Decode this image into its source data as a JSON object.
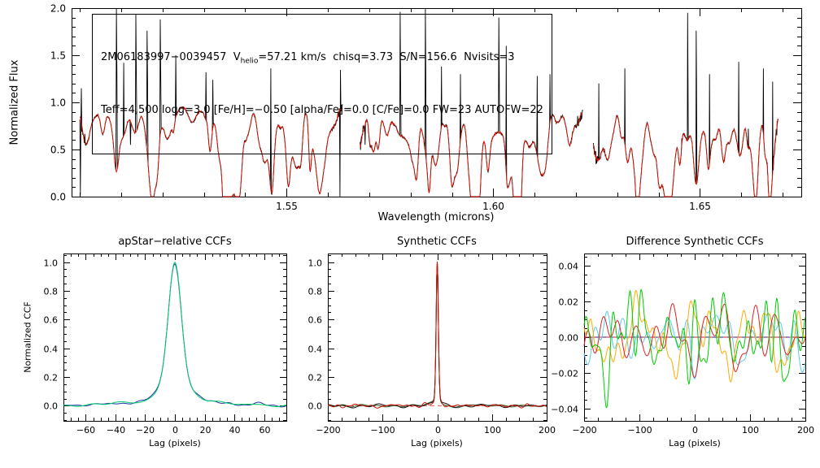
{
  "page": {
    "background": "#ffffff"
  },
  "chart_data": [
    {
      "id": "spectrum",
      "type": "line",
      "title": "",
      "xlabel": "Wavelength (microns)",
      "ylabel": "Normalized Flux",
      "xlim": [
        1.498,
        1.6745
      ],
      "ylim": [
        0.0,
        2.0
      ],
      "xticks": [
        1.55,
        1.6,
        1.65
      ],
      "yticks": [
        0.0,
        0.5,
        1.0,
        1.5,
        2.0
      ],
      "xminor": 0.01,
      "yminor": 0.1,
      "xfmt": 2,
      "yfmt": 1,
      "annotation": {
        "line1_pre": "2M06183997−0039457  V",
        "line1_sub": "helio",
        "line1_post": "=57.21 km/s  chisq=3.73  S/N=156.6  Nvisits=3",
        "line2": "Teff=4,500 logg=3.0 [Fe/H]=−0.50 [alpha/Fe]=0.0 [C/Fe]=0.0 FW=23 AUTOFW=22"
      },
      "segments": [
        [
          1.5,
          1.5635
        ],
        [
          1.5678,
          1.6216
        ],
        [
          1.6242,
          1.6689
        ]
      ],
      "baseline": 0.965,
      "noise_sigma": 0.012,
      "colors": {
        "data": "#000000",
        "model": "#dd1100"
      },
      "emission_spikes": [
        {
          "w": 1.5003,
          "h": 1.15
        },
        {
          "w": 1.5088,
          "h": 2.05
        },
        {
          "w": 1.5106,
          "h": 1.42
        },
        {
          "w": 1.5135,
          "h": 1.93
        },
        {
          "w": 1.5163,
          "h": 1.76
        },
        {
          "w": 1.5194,
          "h": 1.88
        },
        {
          "w": 1.5232,
          "h": 1.5
        },
        {
          "w": 1.5305,
          "h": 1.32
        },
        {
          "w": 1.5322,
          "h": 1.24
        },
        {
          "w": 1.5462,
          "h": 1.36
        },
        {
          "w": 1.5629,
          "h": 2.05
        },
        {
          "w": 1.5775,
          "h": 1.96
        },
        {
          "w": 1.5836,
          "h": 2.05
        },
        {
          "w": 1.5875,
          "h": 1.38
        },
        {
          "w": 1.5921,
          "h": 1.3
        },
        {
          "w": 1.6013,
          "h": 1.9
        },
        {
          "w": 1.6031,
          "h": 1.6
        },
        {
          "w": 1.6106,
          "h": 1.28
        },
        {
          "w": 1.6137,
          "h": 1.3
        },
        {
          "w": 1.6255,
          "h": 1.2
        },
        {
          "w": 1.6318,
          "h": 1.36
        },
        {
          "w": 1.647,
          "h": 1.95
        },
        {
          "w": 1.6491,
          "h": 1.76
        },
        {
          "w": 1.6523,
          "h": 1.3
        },
        {
          "w": 1.6594,
          "h": 1.43
        },
        {
          "w": 1.6653,
          "h": 1.36
        },
        {
          "w": 1.6676,
          "h": 1.22
        }
      ],
      "deep_dips": [
        {
          "w": 1.5001,
          "d": 0.02
        },
        {
          "w": 1.5122,
          "d": 0.55
        },
        {
          "w": 1.5629,
          "d": 0.0
        },
        {
          "w": 1.569,
          "d": 0.55
        },
        {
          "w": 1.6456,
          "d": 0.62
        },
        {
          "w": 1.6617,
          "d": 0.72
        }
      ],
      "strong_lines": [
        {
          "w": 1.5315,
          "d": 0.3
        },
        {
          "w": 1.5535,
          "d": 0.25
        },
        {
          "w": 1.5702,
          "d": 0.33
        },
        {
          "w": 1.571,
          "d": 0.28
        },
        {
          "w": 1.5722,
          "d": 0.3
        },
        {
          "w": 1.59,
          "d": 0.28
        },
        {
          "w": 1.596,
          "d": 0.3
        },
        {
          "w": 1.605,
          "d": 0.25
        },
        {
          "w": 1.634,
          "d": 0.28
        },
        {
          "w": 1.652,
          "d": 0.3
        }
      ],
      "absorption": {
        "n_per_segment": 90,
        "depth_range": [
          0.03,
          0.43
        ],
        "seed": 7
      }
    },
    {
      "id": "apstar-ccf",
      "type": "line",
      "title": "apStar−relative CCFs",
      "xlabel": "Lag (pixels)",
      "ylabel": "Normalized CCF",
      "xlim": [
        -75,
        75
      ],
      "ylim": [
        -0.105,
        1.06
      ],
      "xticks": [
        -60,
        -40,
        -20,
        0,
        20,
        40,
        60
      ],
      "yticks": [
        0.0,
        0.2,
        0.4,
        0.6,
        0.8,
        1.0
      ],
      "xminor": 5,
      "yminor": 0.05,
      "xfmt": 0,
      "yfmt": 1,
      "x_step": 0.5,
      "noise_freq": [
        0.08,
        0.9
      ],
      "profile": {
        "ga": 0.72,
        "gs": 4.2,
        "la": 0.28,
        "lg": 9
      },
      "series": [
        {
          "name": "ccf-visit-blue",
          "color": "#2233aa",
          "seed": 11,
          "amp": 0.012
        },
        {
          "name": "ccf-visit-green",
          "color": "#00cc66",
          "seed": 12,
          "amp": 0.012
        }
      ]
    },
    {
      "id": "synthetic-ccf",
      "type": "line",
      "title": "Synthetic CCFs",
      "xlabel": "Lag (pixels)",
      "ylabel": "",
      "xlim": [
        -200,
        200
      ],
      "ylim": [
        -0.105,
        1.06
      ],
      "xticks": [
        -200,
        -100,
        0,
        100,
        200
      ],
      "yticks": [
        0.0,
        0.2,
        0.4,
        0.6,
        0.8,
        1.0
      ],
      "xminor": 25,
      "yminor": 0.05,
      "xfmt": 0,
      "yfmt": 1,
      "x_step": 1,
      "noise_freq": [
        0.04,
        0.45
      ],
      "profile": {
        "ga": 0.94,
        "gs": 2.0,
        "la": 0.06,
        "lg": 6
      },
      "zero_line_dashed": "#dd5555",
      "series": [
        {
          "name": "syn-ccf-green",
          "color": "#336633",
          "seed": 21,
          "amp": 0.014
        },
        {
          "name": "syn-ccf-black",
          "color": "#111111",
          "seed": 22,
          "amp": 0.013
        },
        {
          "name": "syn-ccf-red",
          "color": "#cc1100",
          "seed": 23,
          "amp": 0.014
        }
      ]
    },
    {
      "id": "diff-ccf",
      "type": "line",
      "title": "Difference Synthetic CCFs",
      "xlabel": "Lag (pixels)",
      "ylabel": "",
      "xlim": [
        -200,
        200
      ],
      "ylim": [
        -0.047,
        0.047
      ],
      "xticks": [
        -200,
        -100,
        0,
        100,
        200
      ],
      "yticks": [
        -0.04,
        -0.02,
        0.0,
        0.02,
        0.04
      ],
      "xminor": 25,
      "yminor": 0.005,
      "xfmt": 0,
      "yfmt": 2,
      "x_step": 1,
      "noise_freq": [
        0.03,
        0.4
      ],
      "profile": null,
      "zero_line_solid": "#222299",
      "zero_line_dashed": "#cc2222",
      "series": [
        {
          "name": "diff-cyan",
          "color": "#55ccee",
          "seed": 31,
          "amp": 0.016
        },
        {
          "name": "diff-orange",
          "color": "#ffaa00",
          "seed": 32,
          "amp": 0.02
        },
        {
          "name": "diff-red",
          "color": "#dd2222",
          "seed": 33,
          "amp": 0.018
        },
        {
          "name": "diff-green",
          "color": "#00cc00",
          "seed": 34,
          "amp": 0.03
        }
      ]
    }
  ]
}
